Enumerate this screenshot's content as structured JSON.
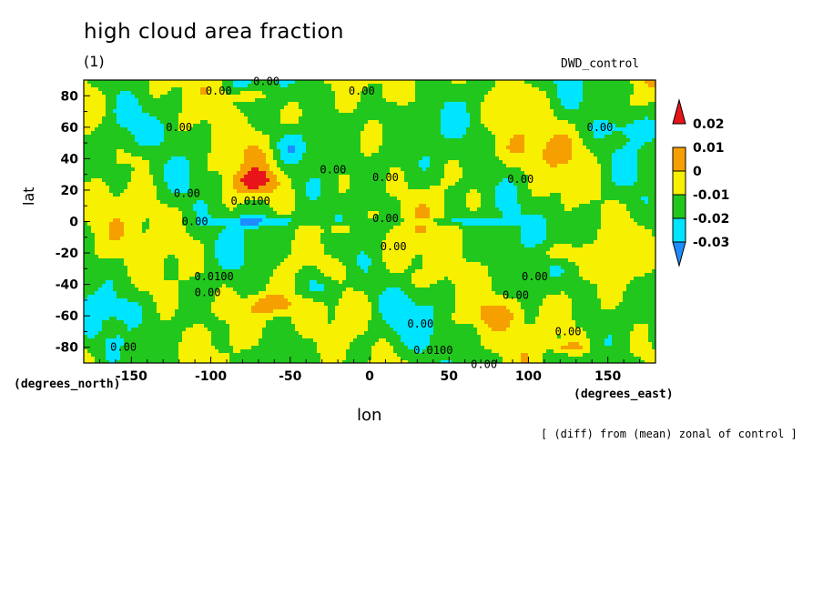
{
  "chart_data": {
    "type": "contour-map",
    "title": "high cloud area fraction",
    "subtitle": "(1)",
    "run_label": "DWD_control",
    "xlabel": "lon",
    "ylabel": "lat",
    "x_unit": "(degrees_east)",
    "y_unit": "(degrees_north)",
    "footnote": "[ (diff) from (mean) zonal of control ]",
    "xlim": [
      -180,
      180
    ],
    "ylim": [
      -90,
      90
    ],
    "x_ticks": [
      -150,
      -100,
      -50,
      0,
      50,
      100,
      150
    ],
    "y_ticks": [
      -80,
      -60,
      -40,
      -20,
      0,
      20,
      40,
      60,
      80
    ],
    "colorbar": {
      "levels": [
        -0.03,
        -0.02,
        -0.01,
        0,
        0.01,
        0.02
      ],
      "level_labels": [
        "-0.03",
        "-0.02",
        "-0.01",
        "0",
        "0.01",
        "0.02"
      ],
      "colors": [
        "#1e8cff",
        "#00e5ff",
        "#22c71e",
        "#f7f000",
        "#f5a000",
        "#e8141a"
      ]
    },
    "contour_labels": [
      {
        "text": "0.00",
        "lon": -65,
        "lat": 89
      },
      {
        "text": "0.00",
        "lon": -95,
        "lat": 83
      },
      {
        "text": "0.00",
        "lon": -5,
        "lat": 83
      },
      {
        "text": "0.00",
        "lon": -120,
        "lat": 60
      },
      {
        "text": "0.00",
        "lon": 145,
        "lat": 60
      },
      {
        "text": "0.00",
        "lon": -23,
        "lat": 33
      },
      {
        "text": "0.00",
        "lon": -115,
        "lat": 18
      },
      {
        "text": "0.0100",
        "lon": -75,
        "lat": 13
      },
      {
        "text": "0.00",
        "lon": 10,
        "lat": 28
      },
      {
        "text": "0.00",
        "lon": 95,
        "lat": 27
      },
      {
        "text": "0.00",
        "lon": -110,
        "lat": 0
      },
      {
        "text": "0.00",
        "lon": 10,
        "lat": 2
      },
      {
        "text": "0.00",
        "lon": 15,
        "lat": -16
      },
      {
        "text": "0.0100",
        "lon": -98,
        "lat": -35
      },
      {
        "text": "0.00",
        "lon": -102,
        "lat": -45
      },
      {
        "text": "0.00",
        "lon": 104,
        "lat": -35
      },
      {
        "text": "0.00",
        "lon": 92,
        "lat": -47
      },
      {
        "text": "0.00",
        "lon": 32,
        "lat": -65
      },
      {
        "text": "0.00",
        "lon": 125,
        "lat": -70
      },
      {
        "text": "0.00",
        "lon": -155,
        "lat": -80
      },
      {
        "text": "0.0100",
        "lon": 40,
        "lat": -82
      },
      {
        "text": "0.00",
        "lon": 72,
        "lat": -91
      }
    ]
  }
}
